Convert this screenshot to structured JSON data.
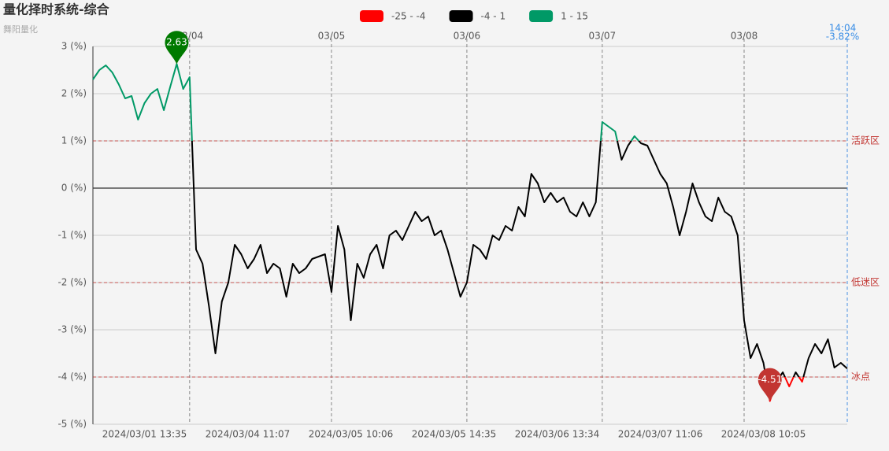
{
  "chart_data": {
    "type": "line",
    "title": "量化择时系统-综合",
    "subtitle": "舞阳量化",
    "categories": [
      null,
      null,
      null,
      null,
      null,
      null,
      null,
      null,
      "2024/03/01 13:35",
      null,
      null,
      null,
      null,
      null,
      null,
      null,
      null,
      null,
      null,
      null,
      null,
      null,
      null,
      null,
      "2024/03/04 11:07",
      null,
      null,
      null,
      null,
      null,
      null,
      null,
      null,
      null,
      null,
      null,
      null,
      null,
      null,
      null,
      "2024/03/05 10:06",
      null,
      null,
      null,
      null,
      null,
      null,
      null,
      null,
      null,
      null,
      null,
      null,
      null,
      null,
      null,
      "2024/03/05 14:35",
      null,
      null,
      null,
      null,
      null,
      null,
      null,
      null,
      null,
      null,
      null,
      null,
      null,
      null,
      null,
      "2024/03/06 13:34",
      null,
      null,
      null,
      null,
      null,
      null,
      null,
      null,
      null,
      null,
      null,
      null,
      null,
      null,
      null,
      "2024/03/07 11:06",
      null,
      null,
      null,
      null,
      null,
      null,
      null,
      null,
      null,
      null,
      null,
      null,
      null,
      null,
      null,
      "2024/03/08 10:05",
      null,
      null,
      null,
      null,
      null,
      null,
      null,
      null,
      null,
      null,
      null,
      null,
      null
    ],
    "day_labels": [
      null,
      null,
      null,
      null,
      null,
      null,
      null,
      null,
      null,
      null,
      null,
      null,
      null,
      null,
      null,
      "03/04",
      null,
      null,
      null,
      null,
      null,
      null,
      null,
      null,
      null,
      null,
      null,
      null,
      null,
      null,
      null,
      null,
      null,
      null,
      null,
      null,
      null,
      "03/05",
      null,
      null,
      null,
      null,
      null,
      null,
      null,
      null,
      null,
      null,
      null,
      null,
      null,
      null,
      null,
      null,
      null,
      null,
      null,
      null,
      "03/06",
      null,
      null,
      null,
      null,
      null,
      null,
      null,
      null,
      null,
      null,
      null,
      null,
      null,
      null,
      null,
      null,
      null,
      null,
      null,
      null,
      "03/07",
      null,
      null,
      null,
      null,
      null,
      null,
      null,
      null,
      null,
      null,
      null,
      null,
      null,
      null,
      null,
      null,
      null,
      null,
      null,
      null,
      null,
      "03/08",
      null,
      null,
      null,
      null,
      null,
      null,
      null,
      null,
      null,
      null,
      null,
      null,
      null,
      null,
      null,
      "14:04"
    ],
    "end_label": "-3.82%",
    "values": [
      2.3,
      2.5,
      2.6,
      2.45,
      2.2,
      1.9,
      1.95,
      1.45,
      1.8,
      2.0,
      2.1,
      1.65,
      2.15,
      2.63,
      2.1,
      2.35,
      -1.3,
      -1.6,
      -2.5,
      -3.5,
      -2.4,
      -2.0,
      -1.2,
      -1.4,
      -1.7,
      -1.5,
      -1.2,
      -1.8,
      -1.6,
      -1.7,
      -2.3,
      -1.6,
      -1.8,
      -1.7,
      -1.5,
      -1.45,
      -1.4,
      -2.2,
      -0.8,
      -1.3,
      -2.8,
      -1.6,
      -1.9,
      -1.4,
      -1.2,
      -1.7,
      -1.0,
      -0.9,
      -1.1,
      -0.8,
      -0.5,
      -0.7,
      -0.6,
      -1.0,
      -0.9,
      -1.3,
      -1.8,
      -2.3,
      -2.0,
      -1.2,
      -1.3,
      -1.5,
      -1.0,
      -1.1,
      -0.8,
      -0.9,
      -0.4,
      -0.6,
      0.3,
      0.1,
      -0.3,
      -0.1,
      -0.3,
      -0.2,
      -0.5,
      -0.6,
      -0.3,
      -0.6,
      -0.3,
      1.4,
      1.3,
      1.2,
      0.6,
      0.9,
      1.1,
      0.95,
      0.9,
      0.6,
      0.3,
      0.1,
      -0.4,
      -1.0,
      -0.5,
      0.1,
      -0.3,
      -0.6,
      -0.7,
      -0.2,
      -0.5,
      -0.6,
      -1.0,
      -2.8,
      -3.6,
      -3.3,
      -3.7,
      -4.51,
      -4.1,
      -3.9,
      -4.2,
      -3.9,
      -4.1,
      -3.6,
      -3.3,
      -3.5,
      -3.2,
      -3.8,
      -3.7,
      -3.82
    ],
    "pieces": [
      {
        "min": -25,
        "max": -4,
        "label": "-25 - -4",
        "color": "#ff0000"
      },
      {
        "min": -4,
        "max": 1,
        "label": "-4 - 1",
        "color": "#000000"
      },
      {
        "min": 1,
        "max": 15,
        "label": "1 - 15",
        "color": "#009966"
      }
    ],
    "ylim": [
      -5,
      3
    ],
    "yticks": [
      {
        "value": -5,
        "label": "-5 (%)"
      },
      {
        "value": -4,
        "label": "-4 (%)"
      },
      {
        "value": -3,
        "label": "-3 (%)"
      },
      {
        "value": -2,
        "label": "-2 (%)"
      },
      {
        "value": -1,
        "label": "-1 (%)"
      },
      {
        "value": 0,
        "label": "0 (%)"
      },
      {
        "value": 1,
        "label": "1 (%)"
      },
      {
        "value": 2,
        "label": "2 (%)"
      },
      {
        "value": 3,
        "label": "3 (%)"
      }
    ],
    "mark_lines": [
      {
        "value": 1,
        "label": "活跃区"
      },
      {
        "value": -2,
        "label": "低迷区"
      },
      {
        "value": -4,
        "label": "冰点"
      }
    ],
    "mark_line_color": "#c23531",
    "mark_points": [
      {
        "type": "max",
        "color": "#007a00"
      },
      {
        "type": "min",
        "color": "#c23531"
      }
    ],
    "grid": true
  }
}
